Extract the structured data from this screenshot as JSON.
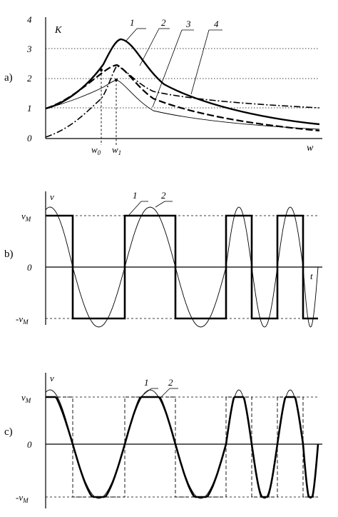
{
  "chart_data": [
    {
      "panel": "a)",
      "type": "line",
      "ylabel": "K",
      "xlabel": "w",
      "ytick_labels": [
        "0",
        "1",
        "2",
        "3",
        "4"
      ],
      "ylim": [
        0,
        4
      ],
      "grid": "dotted horizontal at 1, 2, 3",
      "x_markers": [
        {
          "label": "w",
          "sub": "0"
        },
        {
          "label": "w",
          "sub": "1"
        }
      ],
      "curve_labels": [
        "1",
        "2",
        "3",
        "4"
      ],
      "series": [
        {
          "label": "1",
          "style": "thin solid",
          "values_at_markers": {
            "w0": 1.75,
            "w1": 1.95
          },
          "peak": 2.0,
          "start": 1.0,
          "end": 0.3
        },
        {
          "label": "2",
          "style": "thick solid",
          "values_at_markers": {
            "w0": 2.3,
            "w1": 3.3
          },
          "peak": 3.35,
          "start": 1.0,
          "end": 0.45
        },
        {
          "label": "3",
          "style": "thick dashed",
          "values_at_markers": {
            "w0": 2.3,
            "w1": 2.5
          },
          "peak": 2.55,
          "start": 1.0,
          "end": 0.25
        },
        {
          "label": "4",
          "style": "dash-dot",
          "values_at_markers": {
            "w0": 1.2,
            "w1": 2.0
          },
          "peak": 2.45,
          "start": 0.0,
          "end": 1.05
        }
      ]
    },
    {
      "panel": "b)",
      "type": "line",
      "ylabel": "v",
      "xlabel": "t",
      "ytick_labels": [
        {
          "label": "v",
          "sub": "M"
        },
        {
          "label": "0",
          "sub": ""
        },
        {
          "label": "-v",
          "sub": "M"
        }
      ],
      "curve_labels": [
        "1",
        "2"
      ],
      "series": [
        {
          "label": "1",
          "style": "thick square wave",
          "levels": [
            "v_M",
            "-v_M"
          ]
        },
        {
          "label": "2",
          "style": "thin sinusoid",
          "amplitude_relative_to_vM": 1.15
        }
      ]
    },
    {
      "panel": "c)",
      "type": "line",
      "ylabel": "v",
      "xlabel": "",
      "ytick_labels": [
        {
          "label": "v",
          "sub": "M"
        },
        {
          "label": "0",
          "sub": ""
        },
        {
          "label": "-v",
          "sub": "M"
        }
      ],
      "curve_labels": [
        "1",
        "2"
      ],
      "series": [
        {
          "label": "1",
          "style": "thick clipped sinusoid",
          "levels": [
            "v_M",
            "-v_M"
          ]
        },
        {
          "label": "2",
          "style": "thin sinusoid",
          "amplitude_relative_to_vM": 1.1
        },
        {
          "label": "",
          "style": "dashed square wave",
          "levels": [
            "v_M",
            "-v_M"
          ]
        }
      ]
    }
  ]
}
